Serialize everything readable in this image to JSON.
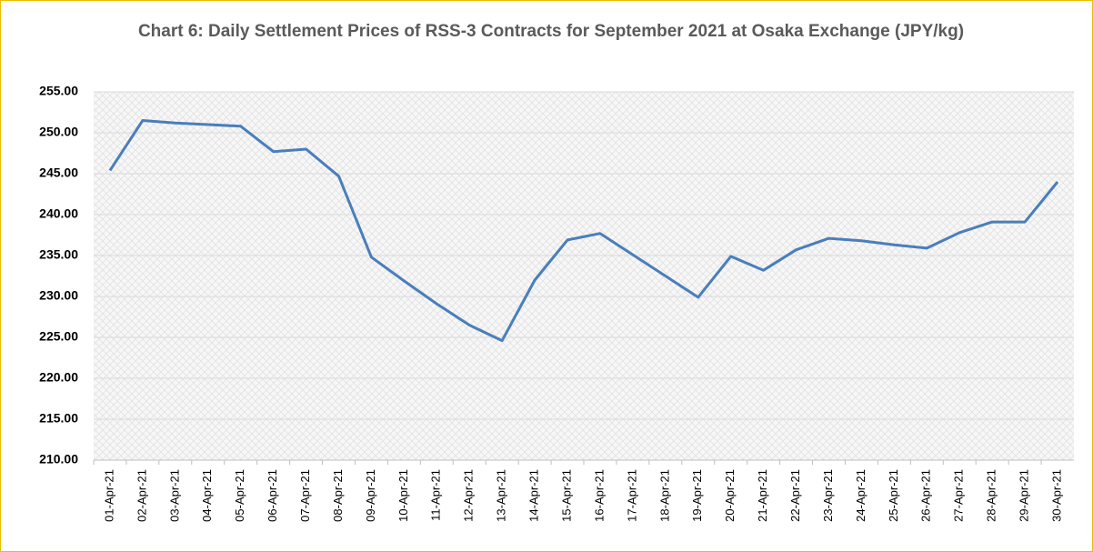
{
  "chart_data": {
    "type": "line",
    "title": "Chart 6: Daily Settlement Prices of RSS-3 Contracts for September 2021 at Osaka Exchange (JPY/kg)",
    "categories": [
      "01-Apr-21",
      "02-Apr-21",
      "03-Apr-21",
      "04-Apr-21",
      "05-Apr-21",
      "06-Apr-21",
      "07-Apr-21",
      "08-Apr-21",
      "09-Apr-21",
      "10-Apr-21",
      "11-Apr-21",
      "12-Apr-21",
      "13-Apr-21",
      "14-Apr-21",
      "15-Apr-21",
      "16-Apr-21",
      "17-Apr-21",
      "18-Apr-21",
      "19-Apr-21",
      "20-Apr-21",
      "21-Apr-21",
      "22-Apr-21",
      "23-Apr-21",
      "24-Apr-21",
      "25-Apr-21",
      "26-Apr-21",
      "27-Apr-21",
      "28-Apr-21",
      "29-Apr-21",
      "30-Apr-21"
    ],
    "values": [
      245.4,
      251.5,
      251.2,
      251.0,
      250.8,
      247.7,
      248.0,
      244.7,
      234.8,
      231.9,
      229.1,
      226.5,
      224.6,
      232.0,
      236.9,
      237.7,
      235.1,
      232.5,
      229.9,
      234.9,
      233.2,
      235.7,
      237.1,
      236.8,
      236.3,
      235.9,
      237.8,
      239.1,
      239.1,
      244.0
    ],
    "color": "#4a7ebb",
    "ylim": [
      210,
      255
    ],
    "yticks": [
      {
        "value": 210,
        "label": "210.00"
      },
      {
        "value": 215,
        "label": "215.00"
      },
      {
        "value": 220,
        "label": "220.00"
      },
      {
        "value": 225,
        "label": "225.00"
      },
      {
        "value": 230,
        "label": "230.00"
      },
      {
        "value": 235,
        "label": "235.00"
      },
      {
        "value": 240,
        "label": "240.00"
      },
      {
        "value": 245,
        "label": "245.00"
      },
      {
        "value": 250,
        "label": "250.00"
      },
      {
        "value": 255,
        "label": "255.00"
      }
    ],
    "grid": true
  }
}
